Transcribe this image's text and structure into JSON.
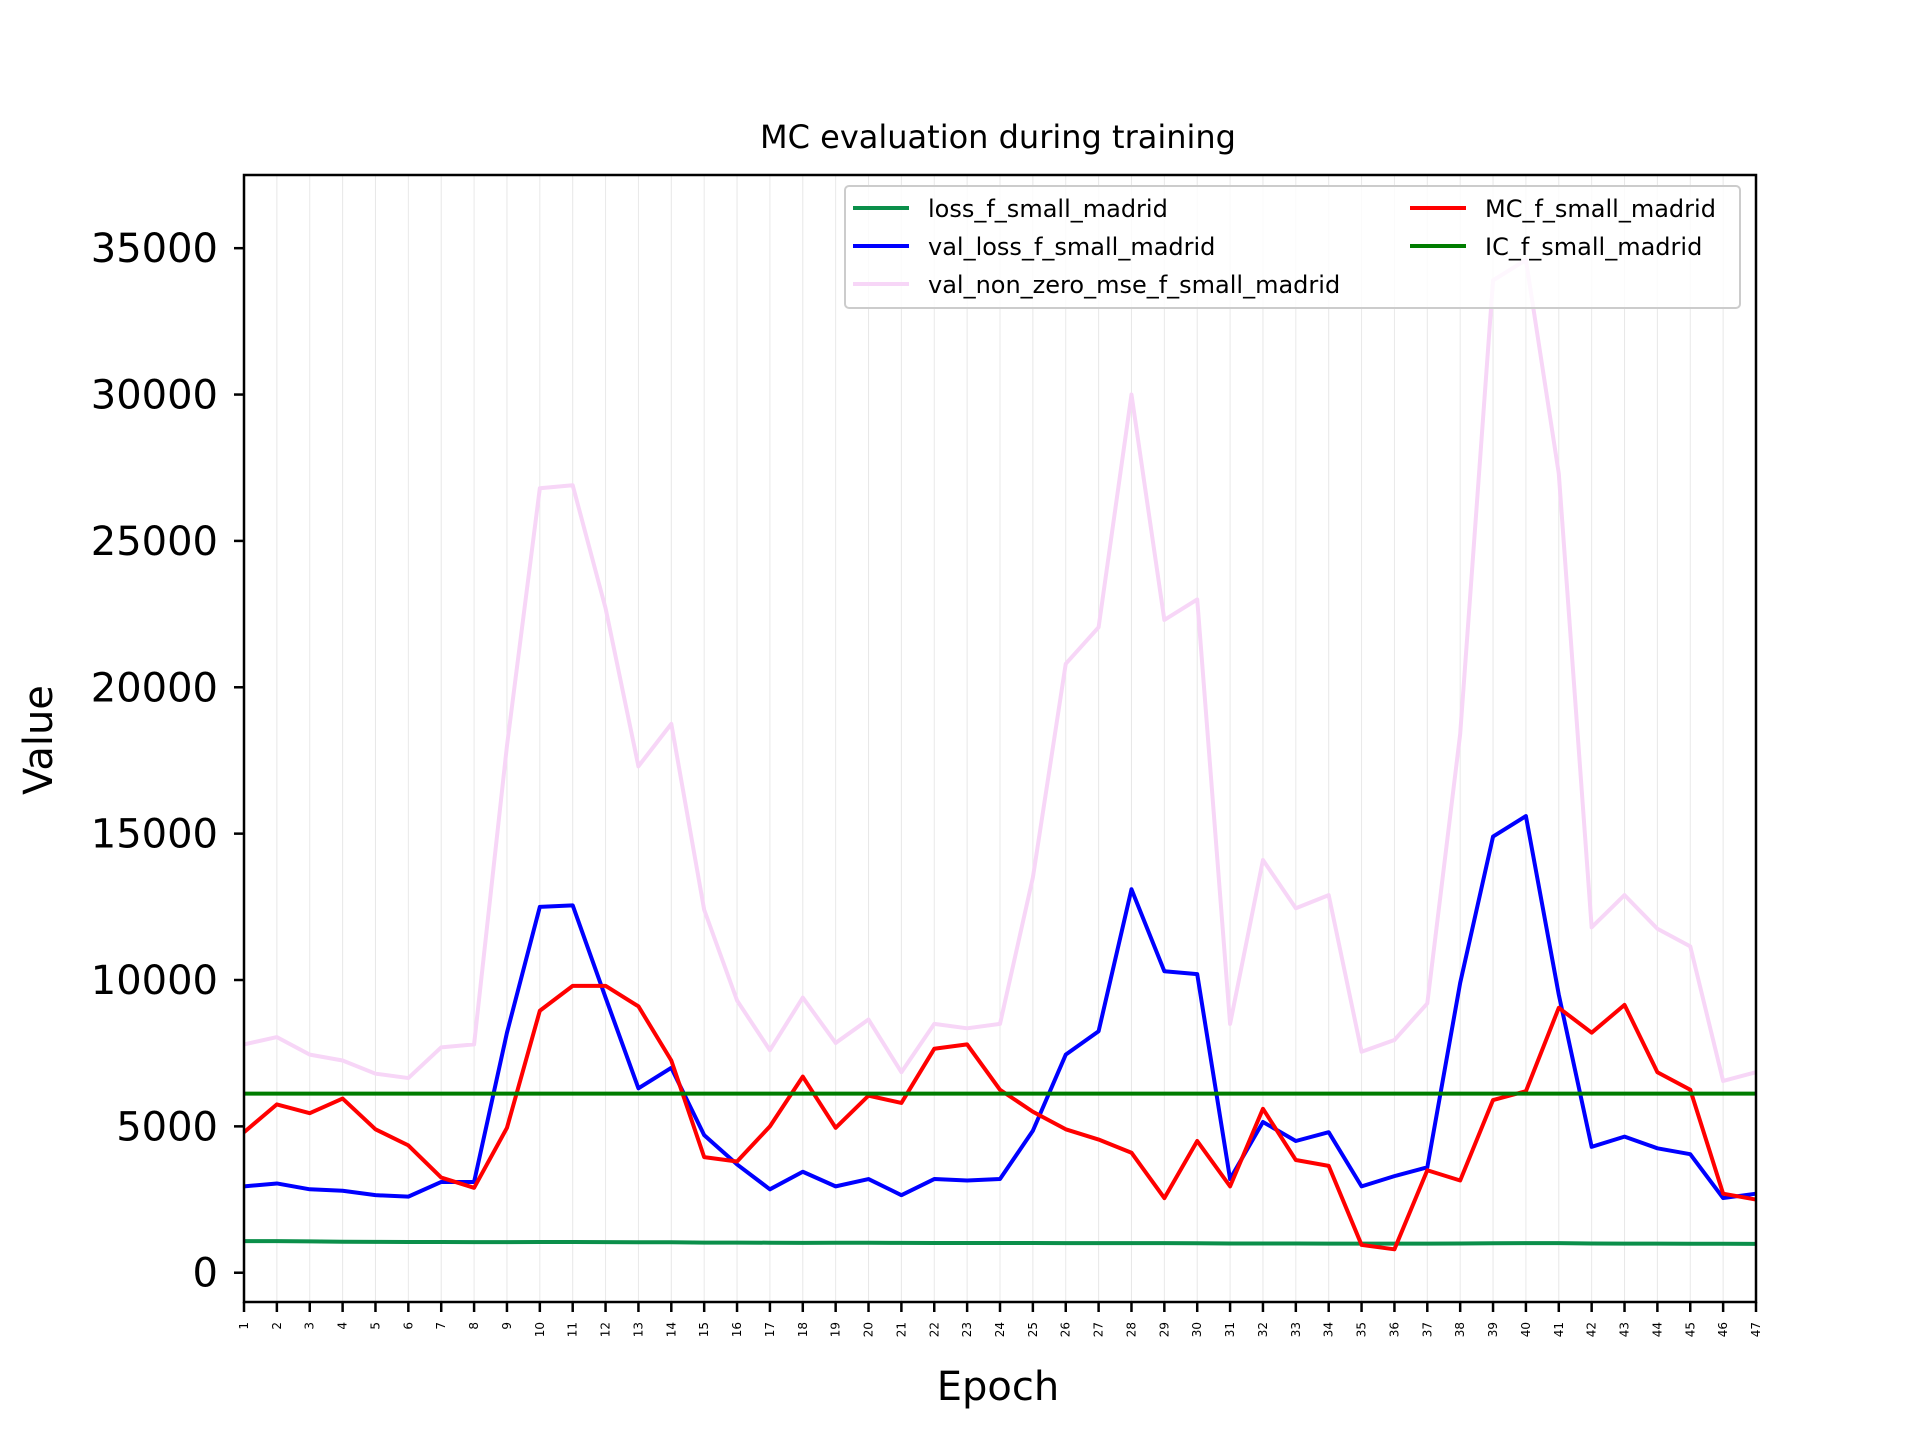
{
  "chart_data": {
    "type": "line",
    "title": "MC evaluation during training",
    "xlabel": "Epoch",
    "ylabel": "Value",
    "x": [
      1,
      2,
      3,
      4,
      5,
      6,
      7,
      8,
      9,
      10,
      11,
      12,
      13,
      14,
      15,
      16,
      17,
      18,
      19,
      20,
      21,
      22,
      23,
      24,
      25,
      26,
      27,
      28,
      29,
      30,
      31,
      32,
      33,
      34,
      35,
      36,
      37,
      38,
      39,
      40,
      41,
      42,
      43,
      44,
      45,
      46,
      47
    ],
    "xlim": [
      1,
      47
    ],
    "ylim": [
      -1000,
      37500
    ],
    "yticks": [
      0,
      5000,
      10000,
      15000,
      20000,
      25000,
      30000,
      35000
    ],
    "grid": "vertical",
    "legend_position": "top-right",
    "legend_columns": 2,
    "series": [
      {
        "name": "loss_f_small_madrid",
        "color": "#0b8f4a",
        "values": [
          1080,
          1080,
          1070,
          1060,
          1055,
          1050,
          1050,
          1045,
          1045,
          1050,
          1050,
          1045,
          1040,
          1040,
          1030,
          1030,
          1025,
          1020,
          1025,
          1025,
          1020,
          1015,
          1015,
          1015,
          1015,
          1010,
          1010,
          1010,
          1010,
          1005,
          1000,
          1000,
          1000,
          995,
          995,
          995,
          995,
          1000,
          1005,
          1010,
          1010,
          1000,
          995,
          995,
          990,
          990,
          985
        ]
      },
      {
        "name": "val_loss_f_small_madrid",
        "color": "#0000ff",
        "values": [
          2950,
          3050,
          2850,
          2800,
          2650,
          2600,
          3100,
          3100,
          8200,
          12500,
          12550,
          9400,
          6300,
          7000,
          4700,
          3700,
          2850,
          3450,
          2950,
          3200,
          2650,
          3200,
          3150,
          3200,
          4850,
          7450,
          8250,
          13100,
          10300,
          10200,
          3200,
          5150,
          4500,
          4800,
          2950,
          3300,
          3600,
          9900,
          14900,
          15600,
          9500,
          4300,
          4650,
          4250,
          4050,
          2550,
          2700
        ]
      },
      {
        "name": "val_non_zero_mse_f_small_madrid",
        "color": "#f7d6f7",
        "values": [
          7800,
          8050,
          7450,
          7250,
          6800,
          6650,
          7700,
          7800,
          18000,
          26800,
          26900,
          22700,
          17300,
          18750,
          12400,
          9300,
          7600,
          9400,
          7850,
          8650,
          6850,
          8500,
          8350,
          8500,
          13500,
          20800,
          22050,
          30000,
          22300,
          23000,
          8500,
          14100,
          12450,
          12900,
          7550,
          7950,
          9200,
          18400,
          33900,
          34600,
          27300,
          11800,
          12900,
          11750,
          11150,
          6550,
          6850
        ]
      },
      {
        "name": "MC_f_small_madrid",
        "color": "#ff0000",
        "values": [
          4800,
          5750,
          5450,
          5950,
          4900,
          4350,
          3250,
          2900,
          4950,
          8950,
          9800,
          9800,
          9100,
          7250,
          3950,
          3800,
          5000,
          6700,
          4950,
          6050,
          5800,
          7650,
          7800,
          6250,
          5500,
          4900,
          4550,
          4100,
          2550,
          4500,
          2950,
          5600,
          3850,
          3650,
          950,
          800,
          3500,
          3150,
          5900,
          6200,
          9050,
          8200,
          9150,
          6850,
          6250,
          2700,
          2500
        ]
      },
      {
        "name": "IC_f_small_madrid",
        "color": "#007d00",
        "values": [
          6120,
          6120,
          6120,
          6120,
          6120,
          6120,
          6120,
          6120,
          6120,
          6120,
          6120,
          6120,
          6120,
          6120,
          6120,
          6120,
          6120,
          6120,
          6120,
          6120,
          6120,
          6120,
          6120,
          6120,
          6120,
          6120,
          6120,
          6120,
          6120,
          6120,
          6120,
          6120,
          6120,
          6120,
          6120,
          6120,
          6120,
          6120,
          6120,
          6120,
          6120,
          6120,
          6120,
          6120,
          6120,
          6120,
          6120
        ]
      }
    ]
  }
}
